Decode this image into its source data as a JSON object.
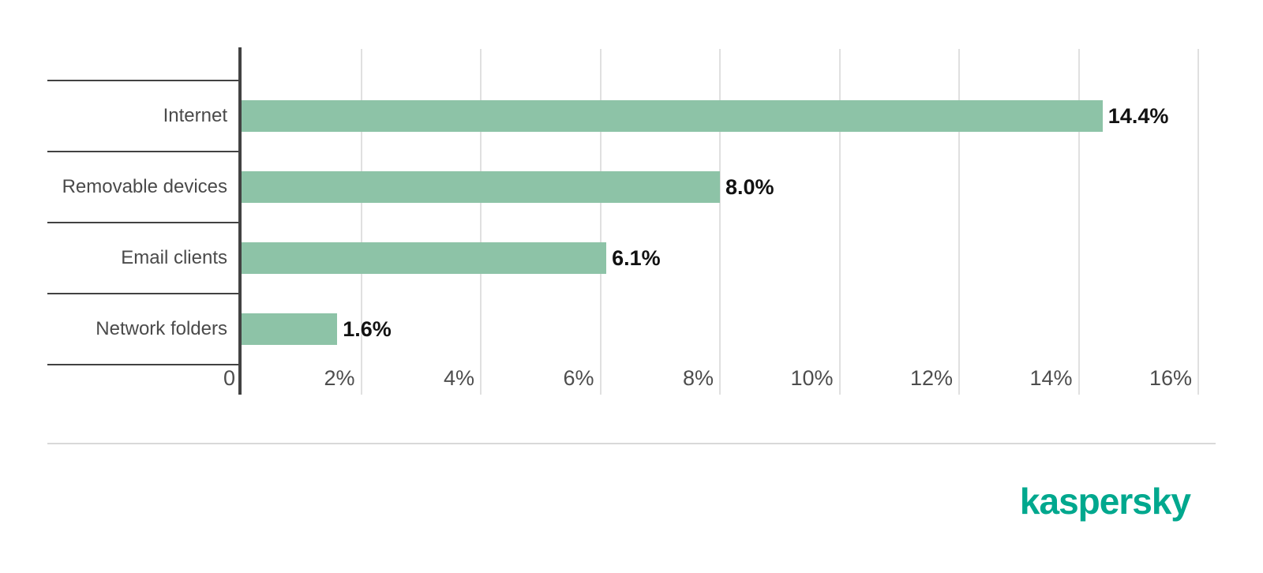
{
  "chart_data": {
    "type": "bar",
    "orientation": "horizontal",
    "title": "",
    "xlabel": "",
    "ylabel": "",
    "categories": [
      "Internet",
      "Removable devices",
      "Email clients",
      "Network folders"
    ],
    "values": [
      14.4,
      8.0,
      6.1,
      1.6
    ],
    "value_labels": [
      "14.4%",
      "8.0%",
      "6.1%",
      "1.6%"
    ],
    "xlim": [
      0,
      16
    ],
    "x_tick_values": [
      0,
      2,
      4,
      6,
      8,
      10,
      12,
      14,
      16
    ],
    "x_tick_labels": [
      "0",
      "2%",
      "4%",
      "6%",
      "8%",
      "10%",
      "12%",
      "14%",
      "16%"
    ],
    "grid": "vertical",
    "legend": "none",
    "bar_color": "#8dc3a7"
  },
  "branding": {
    "logo_text": "kaspersky",
    "logo_color": "#00a88e"
  },
  "colors": {
    "axis": "#424242",
    "gridline": "#e0e0e0",
    "category_label": "#4a4a4a",
    "tick_label": "#4d4d4d",
    "value_label": "#121212",
    "divider": "#d9d9d9",
    "background": "#ffffff"
  }
}
